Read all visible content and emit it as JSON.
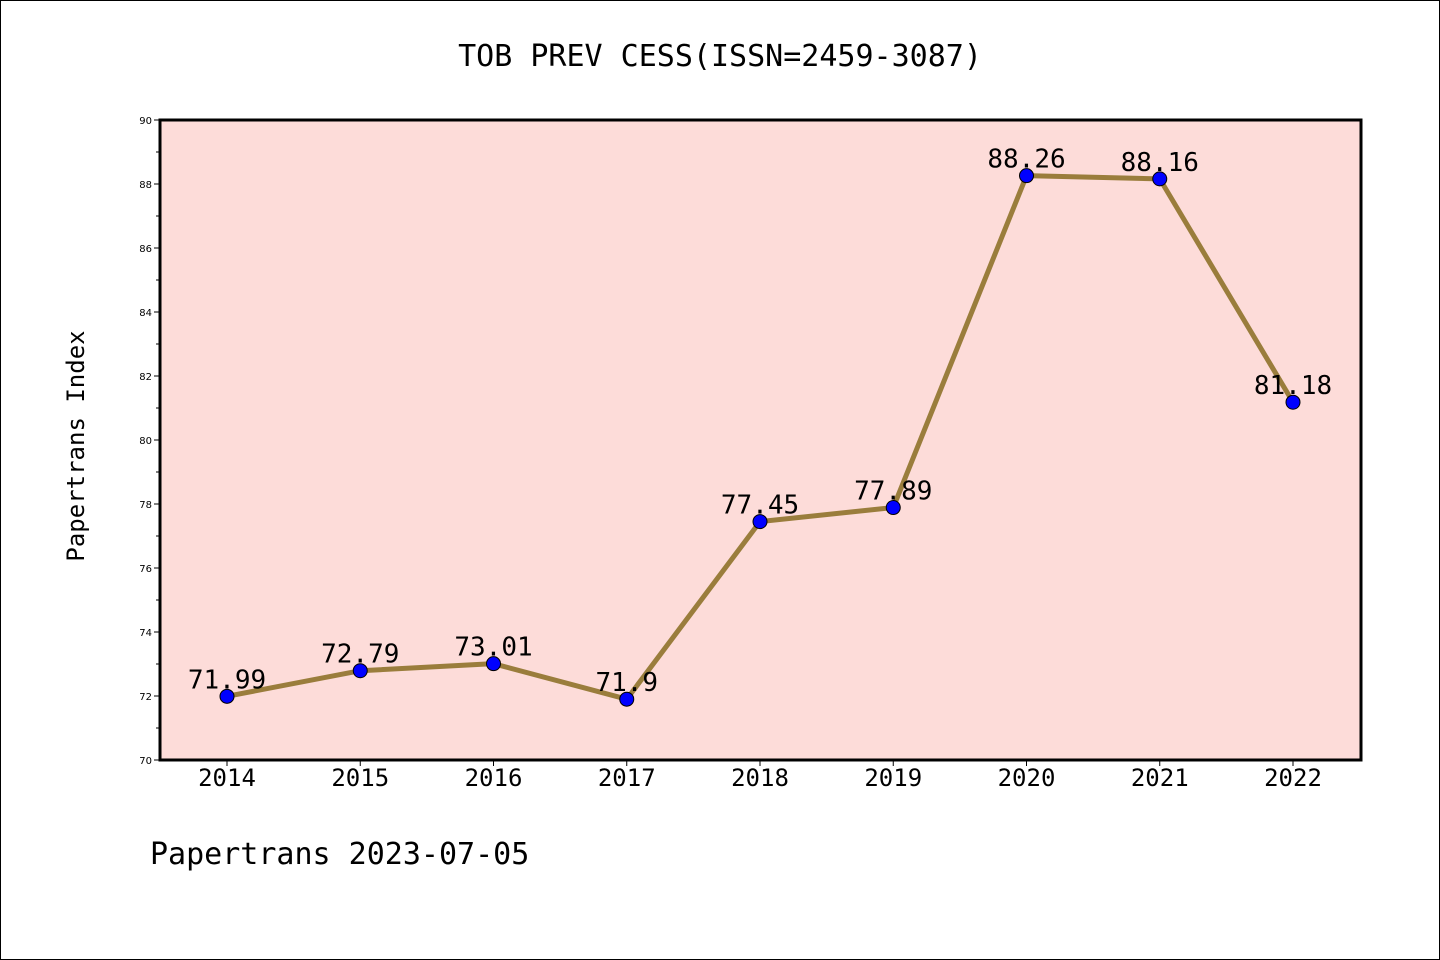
{
  "footer": "Papertrans 2023-07-05",
  "chart_data": {
    "type": "line",
    "title": "TOB PREV CESS(ISSN=2459-3087)",
    "xlabel": "",
    "ylabel": "Papertrans Index",
    "categories": [
      "2014",
      "2015",
      "2016",
      "2017",
      "2018",
      "2019",
      "2020",
      "2021",
      "2022"
    ],
    "values": [
      71.99,
      72.79,
      73.01,
      71.9,
      77.45,
      77.89,
      88.26,
      88.16,
      81.18
    ],
    "data_labels": [
      "71.99",
      "72.79",
      "73.01",
      "71.9",
      "77.45",
      "77.89",
      "88.26",
      "88.16",
      "81.18"
    ],
    "ylim": [
      70,
      90
    ],
    "yticks": [
      70,
      72,
      74,
      76,
      78,
      80,
      82,
      84,
      86,
      88,
      90
    ],
    "grid": false,
    "colors": {
      "plot_background": "#fddcd9",
      "line": "#9a7d3c",
      "marker": "#0000ff"
    }
  }
}
